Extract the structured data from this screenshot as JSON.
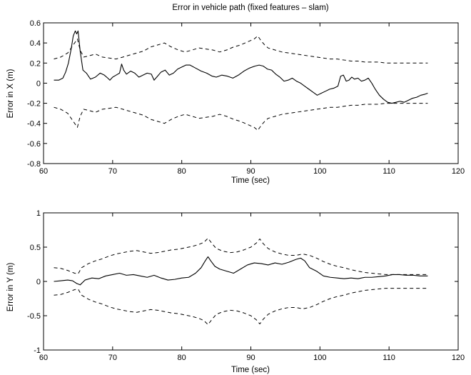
{
  "chart_data": [
    {
      "type": "line",
      "title": "Error in vehicle path (fixed features – slam)",
      "xlabel": "Time (sec)",
      "ylabel": "Error in X (m)",
      "xlim": [
        60,
        120
      ],
      "ylim": [
        -0.8,
        0.6
      ],
      "xticks": [
        60,
        70,
        80,
        90,
        100,
        110,
        120
      ],
      "yticks": [
        -0.8,
        -0.6,
        -0.4,
        -0.2,
        0,
        0.2,
        0.4,
        0.6
      ],
      "ytick_labels": [
        "-0.8",
        "-0.6",
        "-0.4",
        "-0.2",
        "0",
        "0.2",
        "0.4",
        "0.6"
      ],
      "grid": false,
      "series": [
        {
          "style": "solid",
          "x": [
            61.5,
            62.2,
            62.8,
            63.2,
            63.6,
            64.0,
            64.3,
            64.6,
            64.8,
            65.0,
            65.3,
            65.7,
            66.2,
            66.8,
            67.5,
            68.2,
            68.8,
            69.3,
            69.6,
            70.0,
            70.5,
            71.0,
            71.3,
            71.6,
            72.0,
            72.6,
            73.2,
            73.8,
            74.4,
            75.0,
            75.6,
            76.0,
            76.5,
            77.0,
            77.6,
            78.2,
            78.8,
            79.4,
            80.0,
            80.6,
            81.2,
            82.0,
            82.8,
            83.6,
            84.4,
            85.0,
            85.8,
            86.6,
            87.4,
            88.2,
            89.0,
            89.8,
            90.6,
            91.2,
            91.8,
            92.4,
            93.0,
            93.6,
            94.2,
            94.8,
            95.4,
            96.0,
            96.6,
            97.2,
            97.8,
            98.4,
            99.0,
            99.6,
            100.2,
            100.8,
            101.4,
            102.0,
            102.6,
            103.0,
            103.4,
            103.8,
            104.2,
            104.6,
            105.0,
            105.5,
            106.0,
            106.5,
            107.0,
            107.5,
            108.0,
            108.6,
            109.2,
            109.8,
            110.4,
            111.0,
            111.6,
            112.2,
            112.8,
            113.4,
            114.0,
            114.6,
            115.2,
            115.6
          ],
          "y": [
            0.03,
            0.03,
            0.05,
            0.11,
            0.2,
            0.34,
            0.47,
            0.52,
            0.49,
            0.52,
            0.32,
            0.13,
            0.1,
            0.04,
            0.06,
            0.1,
            0.08,
            0.05,
            0.03,
            0.06,
            0.08,
            0.1,
            0.19,
            0.13,
            0.09,
            0.12,
            0.1,
            0.06,
            0.08,
            0.1,
            0.09,
            0.03,
            0.07,
            0.11,
            0.13,
            0.08,
            0.1,
            0.14,
            0.16,
            0.18,
            0.18,
            0.15,
            0.12,
            0.1,
            0.07,
            0.06,
            0.08,
            0.07,
            0.05,
            0.08,
            0.12,
            0.15,
            0.17,
            0.18,
            0.17,
            0.14,
            0.13,
            0.09,
            0.06,
            0.02,
            0.03,
            0.05,
            0.02,
            0.0,
            -0.03,
            -0.06,
            -0.09,
            -0.12,
            -0.1,
            -0.08,
            -0.06,
            -0.05,
            -0.03,
            0.07,
            0.08,
            0.02,
            0.03,
            0.06,
            0.04,
            0.05,
            0.02,
            0.03,
            0.05,
            0.0,
            -0.06,
            -0.12,
            -0.16,
            -0.19,
            -0.2,
            -0.19,
            -0.18,
            -0.19,
            -0.17,
            -0.15,
            -0.14,
            -0.12,
            -0.11,
            -0.1
          ]
        },
        {
          "style": "dashed",
          "x": [
            61.5,
            62.5,
            63.5,
            64.0,
            64.5,
            64.9,
            65.3,
            65.8,
            66.5,
            67.5,
            68.5,
            69.5,
            70.5,
            71.5,
            72.5,
            73.5,
            74.5,
            75.5,
            76.5,
            77.5,
            78.5,
            79.5,
            80.5,
            81.5,
            82.5,
            83.5,
            84.5,
            85.5,
            86.5,
            87.5,
            88.5,
            89.5,
            90.5,
            91.0,
            91.5,
            92.0,
            92.5,
            93.5,
            94.5,
            95.5,
            96.5,
            97.5,
            98.5,
            99.5,
            100.5,
            101.5,
            102.5,
            103.5,
            104.5,
            105.5,
            106.5,
            107.5,
            108.5,
            109.5,
            110.5,
            111.5,
            112.5,
            113.5,
            114.5,
            115.6
          ],
          "y": [
            0.24,
            0.26,
            0.3,
            0.35,
            0.4,
            0.44,
            0.33,
            0.26,
            0.27,
            0.29,
            0.26,
            0.25,
            0.24,
            0.26,
            0.28,
            0.3,
            0.32,
            0.36,
            0.38,
            0.4,
            0.36,
            0.33,
            0.31,
            0.33,
            0.35,
            0.34,
            0.33,
            0.31,
            0.33,
            0.36,
            0.38,
            0.41,
            0.44,
            0.47,
            0.42,
            0.38,
            0.35,
            0.33,
            0.31,
            0.3,
            0.29,
            0.28,
            0.27,
            0.26,
            0.25,
            0.24,
            0.24,
            0.23,
            0.22,
            0.22,
            0.21,
            0.21,
            0.21,
            0.2,
            0.2,
            0.2,
            0.2,
            0.2,
            0.2,
            0.2
          ]
        },
        {
          "style": "dashed",
          "x": [
            61.5,
            62.5,
            63.5,
            64.0,
            64.5,
            64.9,
            65.3,
            65.8,
            66.5,
            67.5,
            68.5,
            69.5,
            70.5,
            71.5,
            72.5,
            73.5,
            74.5,
            75.5,
            76.5,
            77.5,
            78.5,
            79.5,
            80.5,
            81.5,
            82.5,
            83.5,
            84.5,
            85.5,
            86.5,
            87.5,
            88.5,
            89.5,
            90.5,
            91.0,
            91.5,
            92.0,
            92.5,
            93.5,
            94.5,
            95.5,
            96.5,
            97.5,
            98.5,
            99.5,
            100.5,
            101.5,
            102.5,
            103.5,
            104.5,
            105.5,
            106.5,
            107.5,
            108.5,
            109.5,
            110.5,
            111.5,
            112.5,
            113.5,
            114.5,
            115.6
          ],
          "y": [
            -0.24,
            -0.26,
            -0.3,
            -0.35,
            -0.4,
            -0.44,
            -0.33,
            -0.26,
            -0.27,
            -0.29,
            -0.26,
            -0.25,
            -0.24,
            -0.26,
            -0.28,
            -0.3,
            -0.32,
            -0.36,
            -0.38,
            -0.4,
            -0.36,
            -0.33,
            -0.31,
            -0.33,
            -0.35,
            -0.34,
            -0.33,
            -0.31,
            -0.33,
            -0.36,
            -0.38,
            -0.41,
            -0.44,
            -0.47,
            -0.42,
            -0.38,
            -0.35,
            -0.33,
            -0.31,
            -0.3,
            -0.29,
            -0.28,
            -0.27,
            -0.26,
            -0.25,
            -0.24,
            -0.24,
            -0.23,
            -0.22,
            -0.22,
            -0.21,
            -0.21,
            -0.21,
            -0.2,
            -0.2,
            -0.2,
            -0.2,
            -0.2,
            -0.2,
            -0.2
          ]
        }
      ]
    },
    {
      "type": "line",
      "title": "",
      "xlabel": "Time (sec)",
      "ylabel": "Error in Y (m)",
      "xlim": [
        60,
        120
      ],
      "ylim": [
        -1,
        1
      ],
      "xticks": [
        60,
        70,
        80,
        90,
        100,
        110,
        120
      ],
      "yticks": [
        -1,
        -0.5,
        0,
        0.5,
        1
      ],
      "ytick_labels": [
        "-1",
        "-0.5",
        "0",
        "0.5",
        "1"
      ],
      "grid": false,
      "series": [
        {
          "style": "solid",
          "x": [
            61.5,
            62.5,
            63.5,
            64.2,
            64.8,
            65.3,
            66.0,
            67.0,
            68.0,
            69.0,
            70.0,
            71.0,
            72.0,
            73.0,
            74.0,
            75.0,
            76.0,
            77.0,
            78.0,
            79.0,
            80.0,
            81.0,
            82.0,
            82.8,
            83.4,
            83.8,
            84.2,
            84.8,
            85.5,
            86.5,
            87.5,
            88.5,
            89.5,
            90.5,
            91.5,
            92.5,
            93.5,
            94.5,
            95.5,
            96.5,
            97.2,
            97.8,
            98.5,
            99.5,
            100.5,
            101.5,
            102.5,
            103.5,
            104.5,
            105.5,
            106.5,
            107.5,
            108.5,
            109.5,
            110.5,
            111.5,
            112.5,
            113.5,
            114.5,
            115.6
          ],
          "y": [
            0.0,
            0.01,
            0.02,
            0.01,
            -0.03,
            -0.05,
            0.02,
            0.05,
            0.04,
            0.08,
            0.1,
            0.12,
            0.09,
            0.1,
            0.08,
            0.06,
            0.09,
            0.05,
            0.02,
            0.03,
            0.05,
            0.06,
            0.12,
            0.2,
            0.3,
            0.36,
            0.3,
            0.22,
            0.18,
            0.15,
            0.12,
            0.18,
            0.24,
            0.27,
            0.26,
            0.24,
            0.27,
            0.25,
            0.28,
            0.32,
            0.34,
            0.3,
            0.2,
            0.15,
            0.08,
            0.06,
            0.05,
            0.04,
            0.05,
            0.04,
            0.06,
            0.06,
            0.07,
            0.08,
            0.1,
            0.1,
            0.09,
            0.09,
            0.08,
            0.08
          ]
        },
        {
          "style": "dashed",
          "x": [
            61.5,
            62.5,
            63.5,
            64.5,
            65.0,
            65.5,
            66.5,
            67.5,
            68.5,
            69.5,
            70.5,
            71.5,
            72.5,
            73.5,
            74.5,
            75.5,
            76.5,
            77.5,
            78.5,
            79.5,
            80.5,
            81.5,
            82.5,
            83.2,
            83.8,
            84.4,
            85.0,
            86.0,
            87.0,
            88.0,
            89.0,
            90.0,
            90.8,
            91.3,
            91.8,
            92.5,
            93.5,
            94.5,
            95.5,
            96.5,
            97.5,
            98.5,
            99.5,
            100.5,
            101.5,
            102.5,
            103.5,
            104.5,
            105.5,
            106.5,
            107.5,
            108.5,
            109.5,
            110.5,
            111.5,
            112.5,
            113.5,
            114.5,
            115.6
          ],
          "y": [
            0.2,
            0.19,
            0.16,
            0.12,
            0.11,
            0.2,
            0.26,
            0.3,
            0.33,
            0.37,
            0.4,
            0.42,
            0.44,
            0.45,
            0.43,
            0.41,
            0.42,
            0.44,
            0.46,
            0.47,
            0.49,
            0.51,
            0.54,
            0.57,
            0.63,
            0.55,
            0.48,
            0.44,
            0.42,
            0.43,
            0.46,
            0.5,
            0.56,
            0.62,
            0.55,
            0.48,
            0.43,
            0.4,
            0.38,
            0.38,
            0.4,
            0.38,
            0.34,
            0.29,
            0.25,
            0.22,
            0.2,
            0.17,
            0.15,
            0.13,
            0.12,
            0.11,
            0.1,
            0.1,
            0.1,
            0.1,
            0.1,
            0.1,
            0.1
          ]
        },
        {
          "style": "dashed",
          "x": [
            61.5,
            62.5,
            63.5,
            64.5,
            65.0,
            65.5,
            66.5,
            67.5,
            68.5,
            69.5,
            70.5,
            71.5,
            72.5,
            73.5,
            74.5,
            75.5,
            76.5,
            77.5,
            78.5,
            79.5,
            80.5,
            81.5,
            82.5,
            83.2,
            83.8,
            84.4,
            85.0,
            86.0,
            87.0,
            88.0,
            89.0,
            90.0,
            90.8,
            91.3,
            91.8,
            92.5,
            93.5,
            94.5,
            95.5,
            96.5,
            97.5,
            98.5,
            99.5,
            100.5,
            101.5,
            102.5,
            103.5,
            104.5,
            105.5,
            106.5,
            107.5,
            108.5,
            109.5,
            110.5,
            111.5,
            112.5,
            113.5,
            114.5,
            115.6
          ],
          "y": [
            -0.2,
            -0.19,
            -0.16,
            -0.12,
            -0.11,
            -0.2,
            -0.26,
            -0.3,
            -0.33,
            -0.37,
            -0.4,
            -0.42,
            -0.44,
            -0.45,
            -0.43,
            -0.41,
            -0.42,
            -0.44,
            -0.46,
            -0.47,
            -0.49,
            -0.51,
            -0.54,
            -0.57,
            -0.63,
            -0.55,
            -0.48,
            -0.44,
            -0.42,
            -0.43,
            -0.46,
            -0.5,
            -0.56,
            -0.62,
            -0.55,
            -0.48,
            -0.43,
            -0.4,
            -0.38,
            -0.38,
            -0.4,
            -0.38,
            -0.34,
            -0.29,
            -0.25,
            -0.22,
            -0.2,
            -0.17,
            -0.15,
            -0.13,
            -0.12,
            -0.11,
            -0.1,
            -0.1,
            -0.1,
            -0.1,
            -0.1,
            -0.1,
            -0.1
          ]
        }
      ]
    }
  ]
}
